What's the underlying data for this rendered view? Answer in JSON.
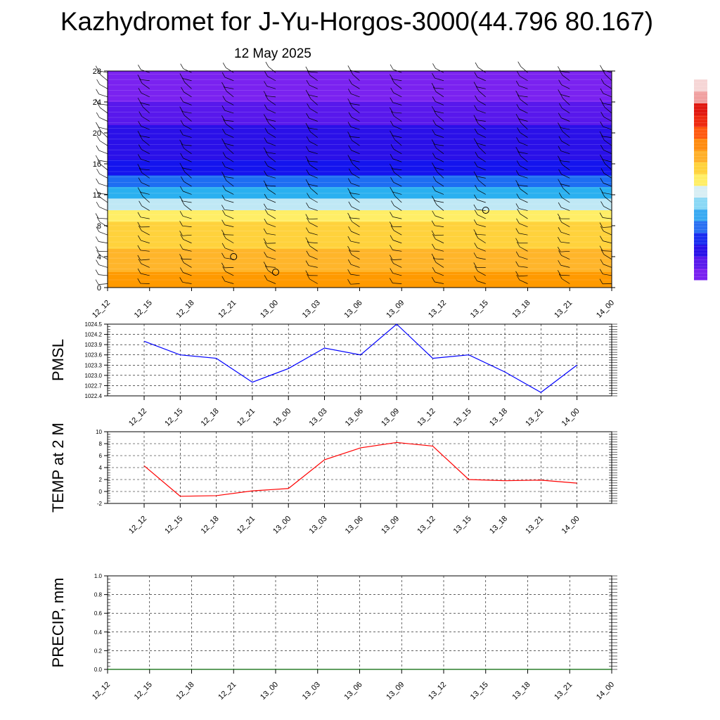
{
  "title": "Kazhydromet for J-Yu-Horgos-3000(44.796 80.167)",
  "date": "12 May 2025",
  "colors": {
    "pmsl_line": "#0000ff",
    "temp_line": "#ff0000",
    "precip_line": "#006400",
    "grid": "#000000"
  },
  "chart_data": [
    {
      "type": "heatmap",
      "name": "vertical cross-section",
      "x_ticks": [
        "12_12",
        "12_15",
        "12_18",
        "12_21",
        "13_00",
        "13_03",
        "13_06",
        "13_09",
        "13_12",
        "13_15",
        "13_18",
        "13_21",
        "14_00"
      ],
      "y_ticks": [
        "0",
        "4",
        "8",
        "12",
        "16",
        "20",
        "24",
        "28"
      ],
      "ylim": [
        0,
        28
      ],
      "bands": [
        {
          "from": 0,
          "to": 2,
          "color": "#ff9a00"
        },
        {
          "from": 2,
          "to": 5,
          "color": "#ffb52a"
        },
        {
          "from": 5,
          "to": 8.5,
          "color": "#ffd23c"
        },
        {
          "from": 8.5,
          "to": 10,
          "color": "#ffee66"
        },
        {
          "from": 10,
          "to": 11.5,
          "color": "#bfe8f5"
        },
        {
          "from": 11.5,
          "to": 13,
          "color": "#2ab0f0"
        },
        {
          "from": 13,
          "to": 14.5,
          "color": "#1e6ef2"
        },
        {
          "from": 14.5,
          "to": 16.5,
          "color": "#1414ee"
        },
        {
          "from": 16.5,
          "to": 21,
          "color": "#2a10e8"
        },
        {
          "from": 21,
          "to": 24,
          "color": "#5818ec"
        },
        {
          "from": 24,
          "to": 28,
          "color": "#7a22f0"
        }
      ],
      "colorbar": [
        "#7a22f0",
        "#5a1aec",
        "#2a12e8",
        "#1a2ef0",
        "#2a70f2",
        "#3aaaf2",
        "#8ad8f5",
        "#d8eef4",
        "#ffee66",
        "#ffd23c",
        "#ffb02a",
        "#ff8c10",
        "#ff5a10",
        "#ee2a10",
        "#e01810",
        "#f0a0a0",
        "#f6d6d6"
      ],
      "calm_circles": [
        {
          "x": "12_21",
          "y": 4
        },
        {
          "x": "13_00",
          "y": 2
        },
        {
          "x": "13_15",
          "y": 10
        }
      ]
    },
    {
      "type": "line",
      "name": "pmsl",
      "ylabel": "PMSL",
      "x": [
        "12_12",
        "12_15",
        "12_18",
        "12_21",
        "13_00",
        "13_03",
        "13_06",
        "13_09",
        "13_12",
        "13_15",
        "13_18",
        "13_21",
        "14_00"
      ],
      "values": [
        1024.0,
        1023.6,
        1023.5,
        1022.8,
        1023.2,
        1023.8,
        1023.6,
        1024.5,
        1023.5,
        1023.6,
        1023.1,
        1022.5,
        1023.3
      ],
      "ylim": [
        1022.4,
        1024.5
      ],
      "y_ticks": [
        "1022.4",
        "1022.7",
        "1023.0",
        "1023.3",
        "1023.6",
        "1023.9",
        "1024.2",
        "1024.5"
      ]
    },
    {
      "type": "line",
      "name": "temp",
      "ylabel": "TEMP at 2 M",
      "x": [
        "12_12",
        "12_15",
        "12_18",
        "12_21",
        "13_00",
        "13_03",
        "13_06",
        "13_09",
        "13_12",
        "13_15",
        "13_18",
        "13_21",
        "14_00"
      ],
      "values": [
        4.3,
        -0.8,
        -0.7,
        0.1,
        0.5,
        5.3,
        7.3,
        8.2,
        7.6,
        2.0,
        1.8,
        1.9,
        1.4
      ],
      "ylim": [
        -2,
        10
      ],
      "y_ticks": [
        "-2",
        "0",
        "2",
        "4",
        "6",
        "8",
        "10"
      ]
    },
    {
      "type": "line",
      "name": "precip",
      "ylabel": "PRECIP, mm",
      "x": [
        "12_12",
        "12_15",
        "12_18",
        "12_21",
        "13_00",
        "13_03",
        "13_06",
        "13_09",
        "13_12",
        "13_15",
        "13_18",
        "13_21",
        "14_00"
      ],
      "values": [
        0,
        0,
        0,
        0,
        0,
        0,
        0,
        0,
        0,
        0,
        0,
        0,
        0
      ],
      "ylim": [
        0,
        1
      ],
      "y_ticks": [
        "0.0",
        "0.2",
        "0.4",
        "0.6",
        "0.8",
        "1.0"
      ]
    }
  ]
}
